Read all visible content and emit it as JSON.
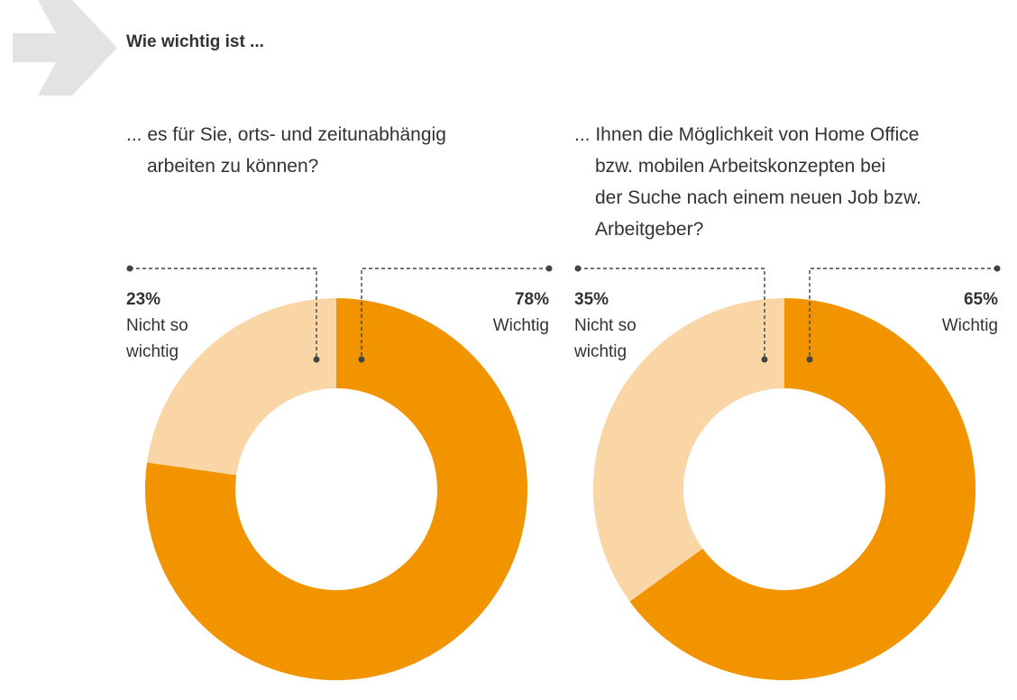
{
  "header": {
    "title": "Wie wichtig ist ..."
  },
  "questions": [
    {
      "line1": "... es für Sie, orts- und zeitunabhängig",
      "line2": "arbeiten zu können?",
      "line3": "",
      "line4": ""
    },
    {
      "line1": "... Ihnen die Möglichkeit von Home Office",
      "line2": "bzw. mobilen Arbeitskonzepten bei",
      "line3": "der Suche nach einem neuen Job bzw.",
      "line4": "Arbeitgeber?"
    }
  ],
  "labels": [
    {
      "left_pct": "23%",
      "left_text_1": "Nicht so",
      "left_text_2": "wichtig",
      "right_pct": "78%",
      "right_text": "Wichtig"
    },
    {
      "left_pct": "35%",
      "left_text_1": "Nicht so",
      "left_text_2": "wichtig",
      "right_pct": "65%",
      "right_text": "Wichtig"
    }
  ],
  "colors": {
    "important": "#f29400",
    "not_important": "#fad5a6",
    "leader": "#444444",
    "arrow": "#e3e3e3"
  },
  "chart_data": [
    {
      "type": "pie",
      "categories": [
        "Nicht so wichtig",
        "Wichtig"
      ],
      "values": [
        23,
        78
      ]
    },
    {
      "type": "pie",
      "categories": [
        "Nicht so wichtig",
        "Wichtig"
      ],
      "values": [
        35,
        65
      ]
    }
  ]
}
